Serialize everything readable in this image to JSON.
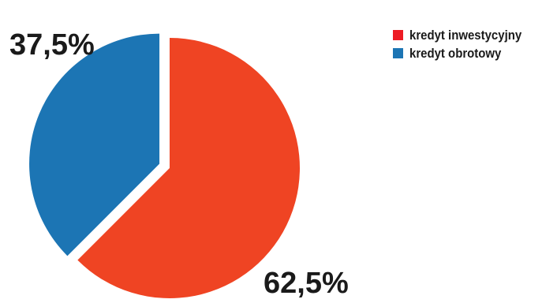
{
  "chart_data": {
    "type": "pie",
    "title": "",
    "slices": [
      {
        "label": "kredyt inwestycyjny",
        "value": 62.5,
        "display": "62,5%",
        "color": "#ef4423"
      },
      {
        "label": "kredyt obrotowy",
        "value": 37.5,
        "display": "37,5%",
        "color": "#1c75b4"
      }
    ],
    "legend_position": "top-right",
    "legend_swatch_colors": [
      "#ed1c24",
      "#1c75b4"
    ],
    "exploded_slice": "kredyt obrotowy"
  }
}
